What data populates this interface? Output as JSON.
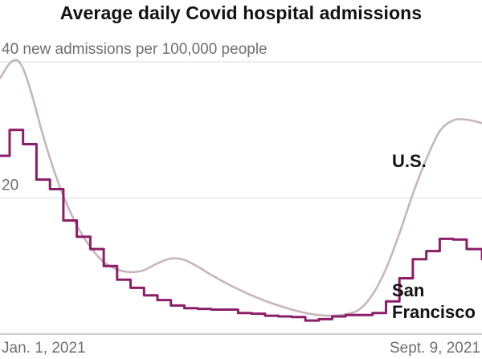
{
  "chart_data": {
    "type": "line",
    "title": "Average daily Covid hospital admissions",
    "ylabel": "new admissions per 100,000 people",
    "ylim": [
      0,
      40
    ],
    "yticks": [
      {
        "value": 40,
        "label": "40 new admissions per 100,000 people"
      },
      {
        "value": 20,
        "label": "20"
      }
    ],
    "x_tick_labels": [
      {
        "date": "2021-01-01",
        "label": "Jan. 1, 2021"
      },
      {
        "date": "2021-09-09",
        "label": "Sept. 9, 2021"
      }
    ],
    "xlim": [
      "2021-01-01",
      "2021-09-09"
    ],
    "grid": true,
    "series": [
      {
        "name": "U.S.",
        "color": "#c8b5ba",
        "style": "smooth",
        "points": [
          [
            "2021-01-01",
            37.6
          ],
          [
            "2021-01-05",
            39.4
          ],
          [
            "2021-01-08",
            40.2
          ],
          [
            "2021-01-11",
            40.0
          ],
          [
            "2021-01-14",
            38.3
          ],
          [
            "2021-01-18",
            34.8
          ],
          [
            "2021-01-23",
            29.6
          ],
          [
            "2021-01-28",
            25.0
          ],
          [
            "2021-02-03",
            20.3
          ],
          [
            "2021-02-10",
            16.0
          ],
          [
            "2021-02-17",
            12.8
          ],
          [
            "2021-02-24",
            10.6
          ],
          [
            "2021-03-03",
            9.5
          ],
          [
            "2021-03-10",
            9.1
          ],
          [
            "2021-03-17",
            9.4
          ],
          [
            "2021-03-24",
            10.4
          ],
          [
            "2021-03-31",
            11.1
          ],
          [
            "2021-04-07",
            10.9
          ],
          [
            "2021-04-14",
            9.9
          ],
          [
            "2021-04-21",
            8.7
          ],
          [
            "2021-04-28",
            7.6
          ],
          [
            "2021-05-05",
            6.6
          ],
          [
            "2021-05-12",
            5.7
          ],
          [
            "2021-05-19",
            4.9
          ],
          [
            "2021-05-26",
            4.2
          ],
          [
            "2021-06-02",
            3.6
          ],
          [
            "2021-06-09",
            3.1
          ],
          [
            "2021-06-16",
            2.8
          ],
          [
            "2021-06-23",
            2.7
          ],
          [
            "2021-06-30",
            2.9
          ],
          [
            "2021-07-07",
            3.6
          ],
          [
            "2021-07-14",
            5.8
          ],
          [
            "2021-07-21",
            9.6
          ],
          [
            "2021-07-28",
            14.8
          ],
          [
            "2021-08-04",
            20.6
          ],
          [
            "2021-08-11",
            25.7
          ],
          [
            "2021-08-18",
            29.8
          ],
          [
            "2021-08-25",
            31.4
          ],
          [
            "2021-09-01",
            31.5
          ],
          [
            "2021-09-09",
            31.0
          ]
        ]
      },
      {
        "name": "San Francisco",
        "name_lines": [
          "San",
          "Francisco"
        ],
        "color": "#8a1f68",
        "style": "step",
        "points": [
          [
            "2021-01-01",
            26.2
          ],
          [
            "2021-01-06",
            30.0
          ],
          [
            "2021-01-13",
            27.9
          ],
          [
            "2021-01-20",
            22.7
          ],
          [
            "2021-01-27",
            21.3
          ],
          [
            "2021-02-03",
            16.7
          ],
          [
            "2021-02-10",
            14.3
          ],
          [
            "2021-02-17",
            12.5
          ],
          [
            "2021-02-24",
            10.0
          ],
          [
            "2021-03-03",
            8.0
          ],
          [
            "2021-03-10",
            6.8
          ],
          [
            "2021-03-17",
            5.7
          ],
          [
            "2021-03-24",
            5.0
          ],
          [
            "2021-03-31",
            4.2
          ],
          [
            "2021-04-07",
            3.8
          ],
          [
            "2021-04-14",
            3.7
          ],
          [
            "2021-04-21",
            3.6
          ],
          [
            "2021-04-28",
            3.6
          ],
          [
            "2021-05-05",
            3.1
          ],
          [
            "2021-05-12",
            3.0
          ],
          [
            "2021-05-19",
            2.7
          ],
          [
            "2021-05-26",
            2.6
          ],
          [
            "2021-06-02",
            2.5
          ],
          [
            "2021-06-09",
            2.0
          ],
          [
            "2021-06-16",
            2.2
          ],
          [
            "2021-06-23",
            2.6
          ],
          [
            "2021-06-30",
            2.8
          ],
          [
            "2021-07-07",
            2.8
          ],
          [
            "2021-07-14",
            3.1
          ],
          [
            "2021-07-21",
            4.8
          ],
          [
            "2021-07-28",
            8.2
          ],
          [
            "2021-08-04",
            11.0
          ],
          [
            "2021-08-11",
            12.2
          ],
          [
            "2021-08-18",
            14.0
          ],
          [
            "2021-08-25",
            13.9
          ],
          [
            "2021-09-01",
            12.5
          ],
          [
            "2021-09-09",
            11.0
          ]
        ]
      }
    ]
  }
}
